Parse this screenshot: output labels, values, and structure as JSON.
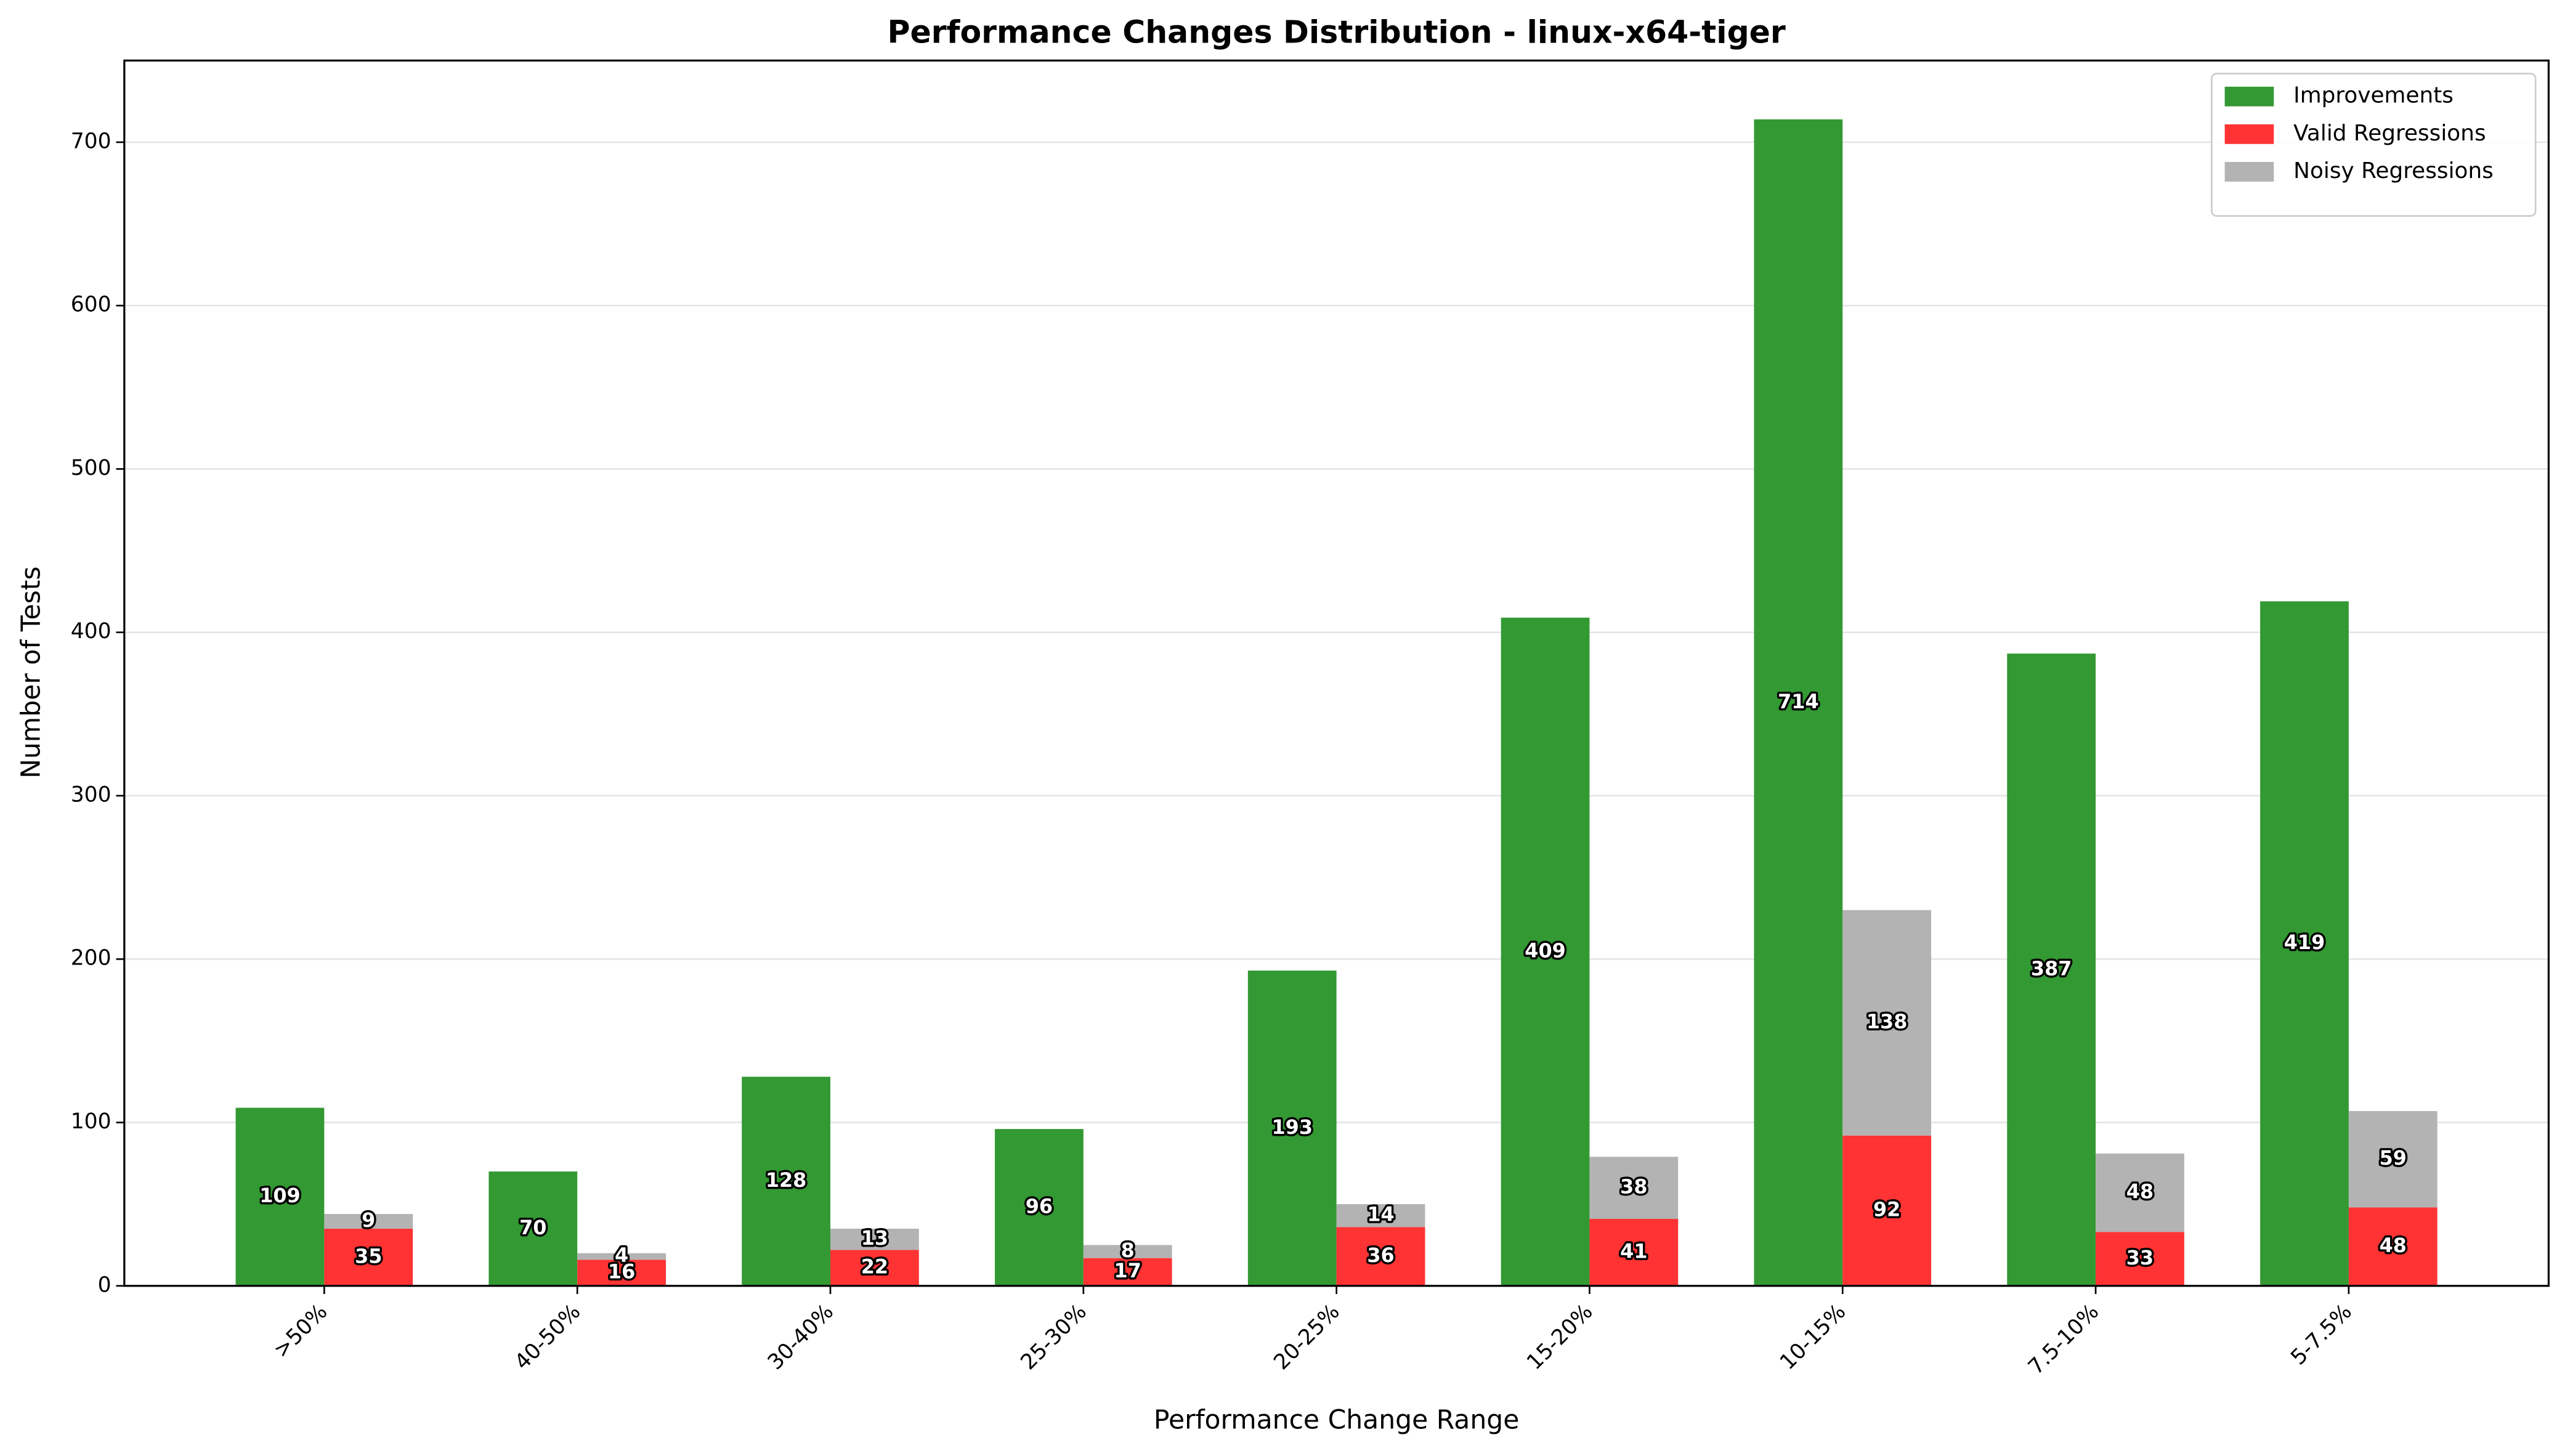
{
  "chart_data": {
    "type": "bar",
    "title": "Performance Changes Distribution - linux-x64-tiger",
    "x_label": "Performance Change Range",
    "y_label": "Number of Tests",
    "categories": [
      ">50%",
      "40-50%",
      "30-40%",
      "25-30%",
      "20-25%",
      "15-20%",
      "10-15%",
      "7.5-10%",
      "5-7.5%"
    ],
    "series": [
      {
        "name": "Improvements",
        "color": "#339933",
        "values": [
          109,
          70,
          128,
          96,
          193,
          409,
          714,
          387,
          419
        ]
      },
      {
        "name": "Valid Regressions",
        "color": "#ff3333",
        "values": [
          35,
          16,
          22,
          17,
          36,
          41,
          92,
          33,
          48
        ]
      },
      {
        "name": "Noisy Regressions",
        "color": "#b3b3b3",
        "stacked": true,
        "values": [
          9,
          4,
          13,
          8,
          14,
          38,
          138,
          48,
          59
        ]
      }
    ],
    "ylim": [
      0,
      750
    ],
    "yticks": [
      0,
      100,
      200,
      300,
      400,
      500,
      600,
      700
    ],
    "grid": true,
    "legend": "upper right"
  }
}
